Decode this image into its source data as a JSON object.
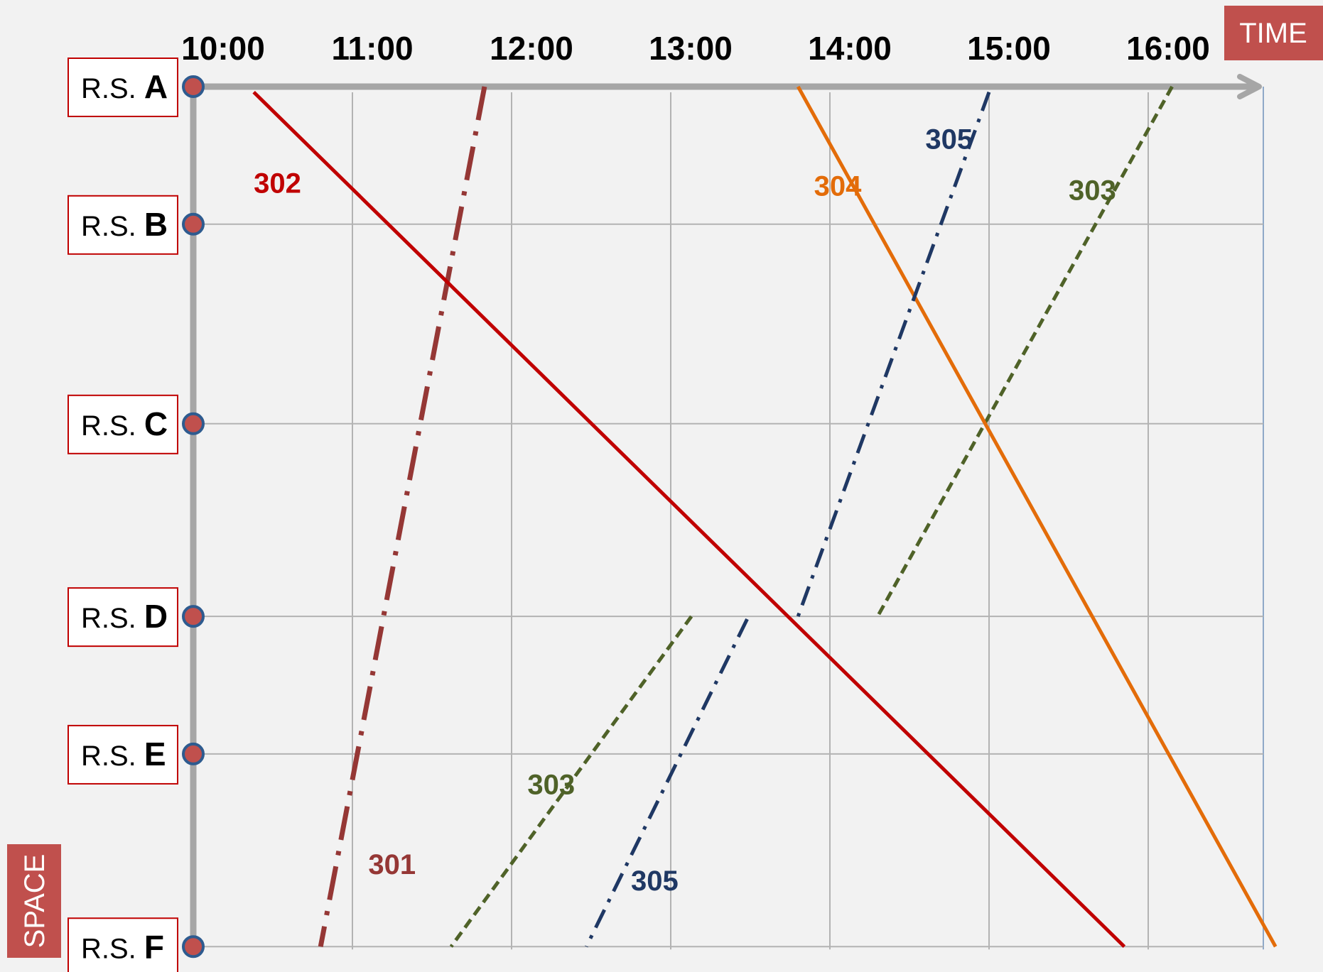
{
  "chart_data": {
    "type": "line",
    "title": "",
    "xlabel": "TIME",
    "ylabel": "SPACE",
    "x_ticks": [
      "10:00",
      "11:00",
      "12:00",
      "13:00",
      "14:00",
      "15:00",
      "16:00"
    ],
    "x_range_hours": [
      10,
      16.75
    ],
    "stations": [
      {
        "prefix": "R.S.",
        "letter": "A",
        "order": 0
      },
      {
        "prefix": "R.S.",
        "letter": "B",
        "order": 1
      },
      {
        "prefix": "R.S.",
        "letter": "C",
        "order": 2.45
      },
      {
        "prefix": "R.S.",
        "letter": "D",
        "order": 3.85
      },
      {
        "prefix": "R.S.",
        "letter": "E",
        "order": 4.85
      },
      {
        "prefix": "R.S.",
        "letter": "F",
        "order": 6.25
      }
    ],
    "grid": true,
    "series": [
      {
        "name": "301",
        "color": "#953735",
        "dash": "dashdot-long",
        "points": [
          {
            "t": 11.83,
            "s": 0
          },
          {
            "t": 10.8,
            "s": 6.25
          }
        ],
        "label_pos": {
          "t": 11.1,
          "s": 5.65
        }
      },
      {
        "name": "302",
        "color": "#c00000",
        "dash": "solid",
        "points": [
          {
            "t": 10.38,
            "s": 0.04
          },
          {
            "t": 15.85,
            "s": 6.25
          }
        ],
        "label_pos": {
          "t": 10.38,
          "s": 0.7
        }
      },
      {
        "name": "303",
        "color": "#4f6228",
        "dash": "dashed",
        "points": [
          {
            "t": 13.13,
            "s": 3.85
          },
          {
            "t": 11.62,
            "s": 6.25
          }
        ],
        "label_pos": {
          "t": 12.1,
          "s": 5.07
        }
      },
      {
        "name": "303",
        "color": "#4f6228",
        "dash": "dashed",
        "points": [
          {
            "t": 16.15,
            "s": 0
          },
          {
            "t": 14.3,
            "s": 3.85
          }
        ],
        "label_pos": {
          "t": 15.5,
          "s": 0.75
        }
      },
      {
        "name": "304",
        "color": "#e36c09",
        "dash": "solid",
        "points": [
          {
            "t": 13.8,
            "s": 0
          },
          {
            "t": 16.8,
            "s": 6.25
          }
        ],
        "label_pos": {
          "t": 13.9,
          "s": 0.72
        }
      },
      {
        "name": "305",
        "color": "#1f3864",
        "dash": "dashdot",
        "points": [
          {
            "t": 13.48,
            "s": 3.87
          },
          {
            "t": 12.47,
            "s": 6.25
          }
        ],
        "label_pos": {
          "t": 12.75,
          "s": 5.77
        }
      },
      {
        "name": "305",
        "color": "#1f3864",
        "dash": "dashdot",
        "points": [
          {
            "t": 15.0,
            "s": 0.04
          },
          {
            "t": 13.8,
            "s": 3.85
          }
        ],
        "label_pos": {
          "t": 14.6,
          "s": 0.38
        }
      }
    ],
    "axis_tags": {
      "time": "TIME",
      "space": "SPACE"
    },
    "colors": {
      "axis": "#a6a6a6",
      "grid": "#b3b3b3",
      "station_marker_fill": "#c0504d",
      "station_marker_stroke": "#2e5b8f",
      "tag_bg": "#c0504d"
    }
  }
}
